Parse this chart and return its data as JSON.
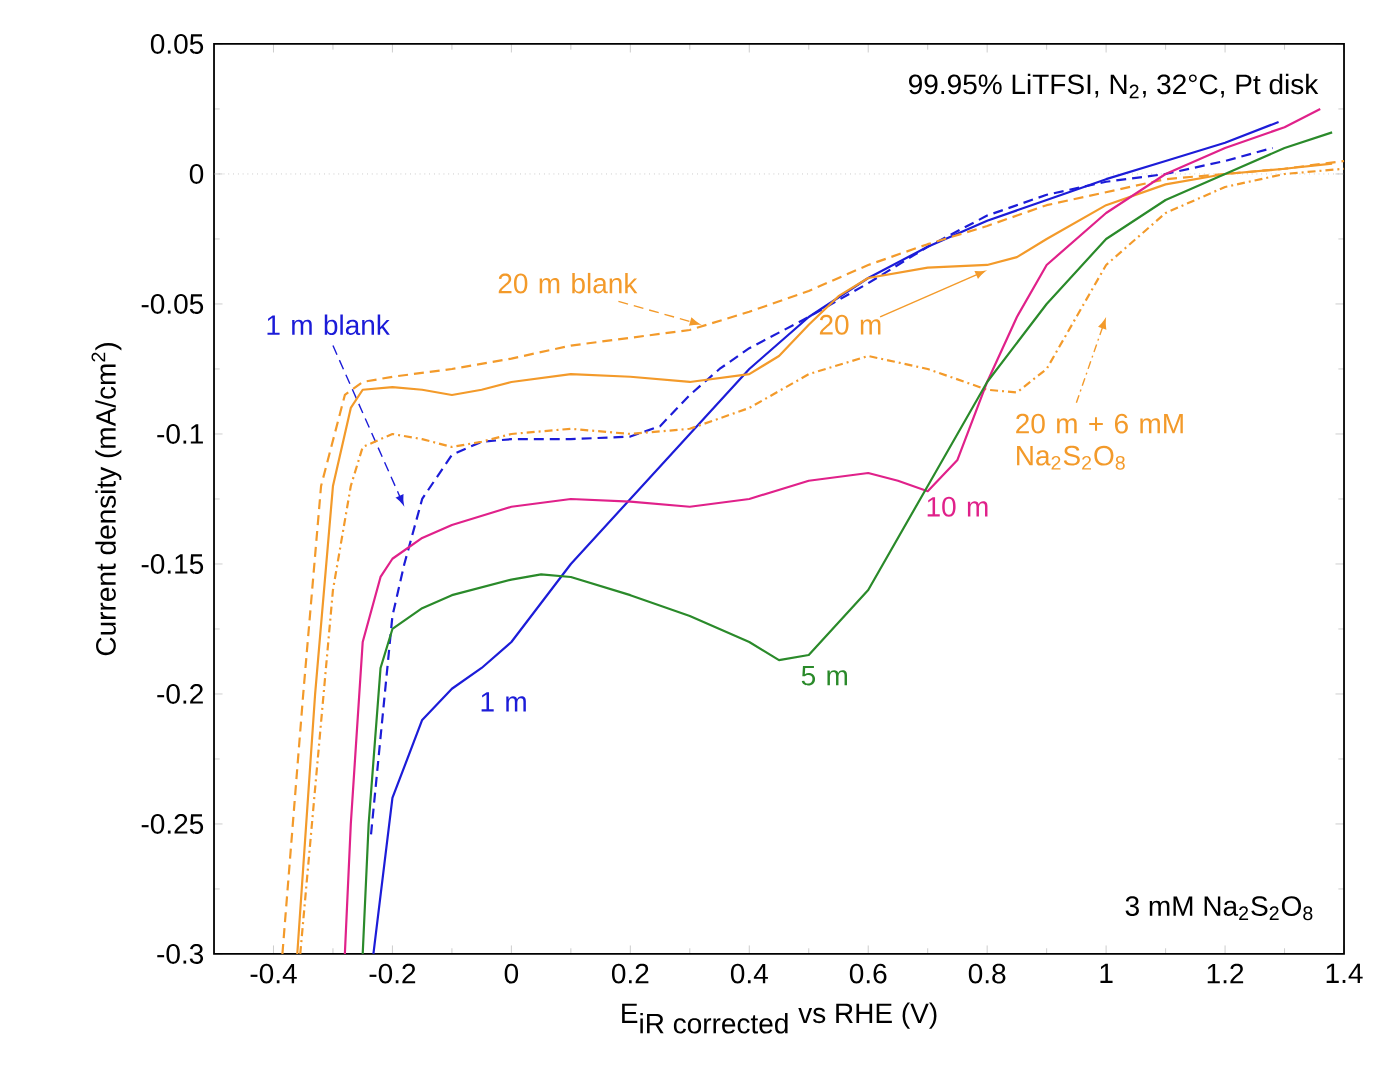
{
  "chart_data": {
    "type": "line",
    "xlabel": "\\textrm{E}_{\\textrm{iR corrected}}\\textrm{ vs RHE (V)}",
    "ylabel": "Current density (mA/cm$^{2}$)",
    "xlim": [
      -0.5,
      1.4
    ],
    "ylim": [
      -0.3,
      0.05
    ],
    "xticks": [
      -0.4,
      -0.2,
      0,
      0.2,
      0.4,
      0.6,
      0.8,
      1,
      1.2,
      1.4
    ],
    "yticks": [
      -0.3,
      -0.25,
      -0.2,
      -0.15,
      -0.1,
      -0.05,
      0,
      0.05
    ],
    "grid": false,
    "legend": false,
    "marker": "none",
    "ref_lines": [
      {
        "axis": "y",
        "value": 0,
        "color": "#b0b0b0",
        "line_style": "dotted"
      }
    ],
    "annotations": [
      "99.95% LiTFSI, N$_{2}$, 32°C, Pt disk",
      "3 mM Na$_{2}$S$_{2}$O$_{8}$"
    ],
    "series": [
      {
        "name": "1 m",
        "color": "#1c1cd8",
        "line_style": "solid",
        "x": [
          -0.232,
          -0.2,
          -0.15,
          -0.1,
          -0.05,
          0,
          0.05,
          0.1,
          0.2,
          0.3,
          0.4,
          0.5,
          0.6,
          0.7,
          0.8,
          0.9,
          1.0,
          1.1,
          1.2,
          1.29
        ],
        "values": [
          -0.3,
          -0.24,
          -0.21,
          -0.198,
          -0.19,
          -0.18,
          -0.165,
          -0.15,
          -0.125,
          -0.1,
          -0.075,
          -0.055,
          -0.04,
          -0.028,
          -0.018,
          -0.01,
          -0.002,
          0.005,
          0.012,
          0.02
        ]
      },
      {
        "name": "1 m blank",
        "color": "#1c1cd8",
        "line_style": "dashed",
        "x": [
          -0.236,
          -0.2,
          -0.18,
          -0.15,
          -0.1,
          -0.05,
          0,
          0.1,
          0.2,
          0.25,
          0.3,
          0.35,
          0.4,
          0.5,
          0.6,
          0.7,
          0.8,
          0.9,
          1.0,
          1.1,
          1.2,
          1.28
        ],
        "values": [
          -0.254,
          -0.17,
          -0.15,
          -0.125,
          -0.108,
          -0.103,
          -0.102,
          -0.102,
          -0.101,
          -0.097,
          -0.085,
          -0.075,
          -0.067,
          -0.055,
          -0.042,
          -0.028,
          -0.016,
          -0.008,
          -0.003,
          0.0,
          0.005,
          0.01
        ]
      },
      {
        "name": "20 m",
        "color": "#f39a2a",
        "line_style": "solid",
        "x": [
          -0.36,
          -0.33,
          -0.3,
          -0.27,
          -0.25,
          -0.2,
          -0.15,
          -0.1,
          -0.05,
          0,
          0.1,
          0.2,
          0.3,
          0.4,
          0.45,
          0.5,
          0.55,
          0.6,
          0.7,
          0.8,
          0.85,
          0.9,
          1.0,
          1.1,
          1.2,
          1.3,
          1.38
        ],
        "values": [
          -0.3,
          -0.2,
          -0.12,
          -0.09,
          -0.083,
          -0.082,
          -0.083,
          -0.085,
          -0.083,
          -0.08,
          -0.077,
          -0.078,
          -0.08,
          -0.077,
          -0.07,
          -0.058,
          -0.047,
          -0.04,
          -0.036,
          -0.035,
          -0.032,
          -0.025,
          -0.012,
          -0.004,
          0.0,
          0.002,
          0.004
        ]
      },
      {
        "name": "20 m blank",
        "color": "#f39a2a",
        "line_style": "dashed",
        "x": [
          -0.385,
          -0.35,
          -0.32,
          -0.28,
          -0.25,
          -0.2,
          -0.1,
          0,
          0.1,
          0.2,
          0.3,
          0.4,
          0.5,
          0.6,
          0.7,
          0.8,
          0.9,
          1.0,
          1.1,
          1.2,
          1.3,
          1.4
        ],
        "values": [
          -0.3,
          -0.2,
          -0.12,
          -0.085,
          -0.08,
          -0.078,
          -0.075,
          -0.071,
          -0.066,
          -0.063,
          -0.06,
          -0.053,
          -0.045,
          -0.035,
          -0.027,
          -0.02,
          -0.012,
          -0.007,
          -0.002,
          0.0,
          0.002,
          0.005
        ]
      },
      {
        "name": "20 m + 6 mM Na$_{2}$S$_{2}$O$_{8}$",
        "color": "#f39a2a",
        "line_style": "dashdotted",
        "x": [
          -0.355,
          -0.3,
          -0.27,
          -0.25,
          -0.2,
          -0.15,
          -0.1,
          -0.05,
          0,
          0.1,
          0.2,
          0.3,
          0.4,
          0.5,
          0.6,
          0.7,
          0.8,
          0.85,
          0.9,
          0.95,
          1.0,
          1.1,
          1.2,
          1.3,
          1.4
        ],
        "values": [
          -0.3,
          -0.16,
          -0.12,
          -0.105,
          -0.1,
          -0.102,
          -0.105,
          -0.103,
          -0.1,
          -0.098,
          -0.1,
          -0.098,
          -0.09,
          -0.077,
          -0.07,
          -0.075,
          -0.083,
          -0.084,
          -0.075,
          -0.055,
          -0.035,
          -0.015,
          -0.005,
          0.0,
          0.002
        ]
      },
      {
        "name": "10 m",
        "color": "#e0218a",
        "line_style": "solid",
        "x": [
          -0.28,
          -0.27,
          -0.25,
          -0.22,
          -0.2,
          -0.15,
          -0.1,
          0,
          0.1,
          0.2,
          0.3,
          0.4,
          0.5,
          0.6,
          0.65,
          0.7,
          0.75,
          0.8,
          0.85,
          0.9,
          1.0,
          1.1,
          1.2,
          1.3,
          1.36
        ],
        "values": [
          -0.3,
          -0.25,
          -0.18,
          -0.155,
          -0.148,
          -0.14,
          -0.135,
          -0.128,
          -0.125,
          -0.126,
          -0.128,
          -0.125,
          -0.118,
          -0.115,
          -0.118,
          -0.122,
          -0.11,
          -0.08,
          -0.055,
          -0.035,
          -0.015,
          0.0,
          0.01,
          0.018,
          0.025
        ]
      },
      {
        "name": "5 m",
        "color": "#2a8a2a",
        "line_style": "solid",
        "x": [
          -0.25,
          -0.24,
          -0.22,
          -0.2,
          -0.15,
          -0.1,
          0,
          0.05,
          0.1,
          0.2,
          0.3,
          0.4,
          0.45,
          0.5,
          0.6,
          0.7,
          0.8,
          0.9,
          1.0,
          1.1,
          1.2,
          1.3,
          1.38
        ],
        "values": [
          -0.3,
          -0.25,
          -0.19,
          -0.175,
          -0.167,
          -0.162,
          -0.156,
          -0.154,
          -0.155,
          -0.162,
          -0.17,
          -0.18,
          -0.187,
          -0.185,
          -0.16,
          -0.12,
          -0.08,
          -0.05,
          -0.025,
          -0.01,
          0.0,
          0.01,
          0.016
        ]
      }
    ]
  }
}
